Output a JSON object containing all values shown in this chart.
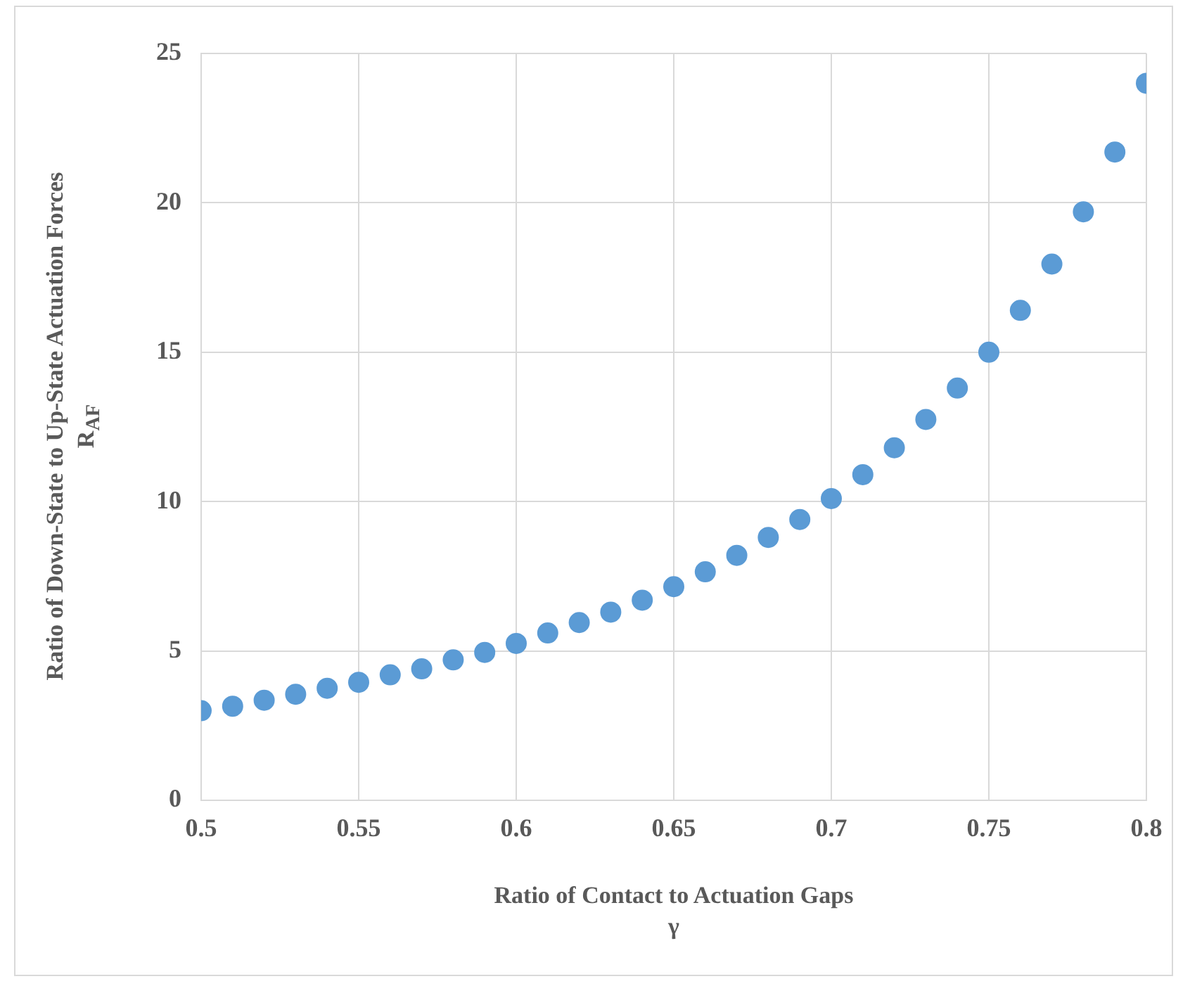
{
  "chart_data": {
    "type": "scatter",
    "xlabel": "Ratio of Contact to Actuation Gaps\nγ",
    "ylabel": "Ratio of Down-State to Up-State Actuation Forces\nR$_{AF}$",
    "x": [
      0.5,
      0.51,
      0.52,
      0.53,
      0.54,
      0.55,
      0.56,
      0.57,
      0.58,
      0.59,
      0.6,
      0.61,
      0.62,
      0.63,
      0.64,
      0.65,
      0.66,
      0.67,
      0.68,
      0.69,
      0.7,
      0.71,
      0.72,
      0.73,
      0.74,
      0.75,
      0.76,
      0.77,
      0.78,
      0.79,
      0.8
    ],
    "series": [
      {
        "color": "#5b9bd5",
        "values": [
          3.0,
          3.15,
          3.35,
          3.55,
          3.75,
          3.95,
          4.2,
          4.4,
          4.7,
          4.95,
          5.25,
          5.6,
          5.95,
          6.3,
          6.7,
          7.15,
          7.65,
          8.2,
          8.8,
          9.4,
          10.1,
          10.9,
          11.8,
          12.75,
          13.8,
          15.0,
          16.4,
          17.95,
          19.7,
          21.7,
          24.0
        ]
      }
    ],
    "xlim": [
      0.5,
      0.8
    ],
    "xticks": [
      0.5,
      0.55,
      0.6,
      0.65,
      0.7,
      0.75,
      0.8
    ],
    "ylim": [
      0,
      25
    ],
    "yticks": [
      0,
      5,
      10,
      15,
      20,
      25
    ],
    "grid": true,
    "legend": false,
    "marker": "circle"
  }
}
